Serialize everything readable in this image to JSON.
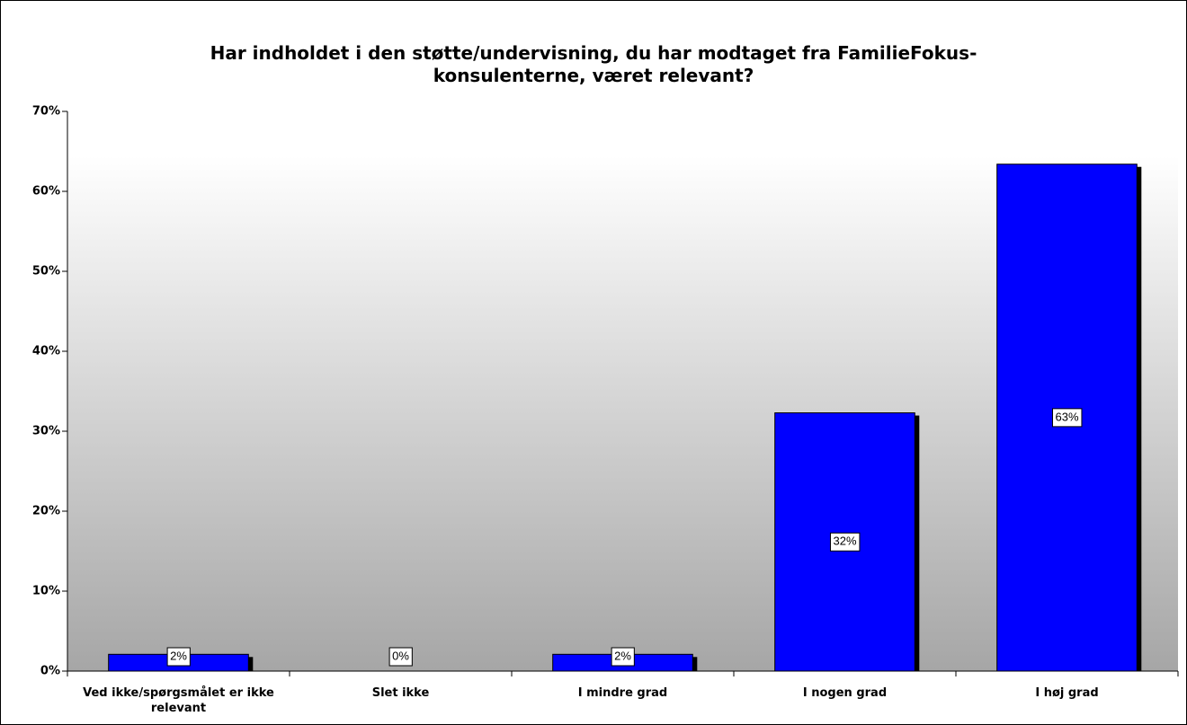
{
  "chart_data": {
    "type": "bar",
    "title": "Har indholdet i den støtte/undervisning, du har modtaget fra FamilieFokus-konsulenterne, været relevant?",
    "categories": [
      "Ved ikke/spørgsmålet er ikke relevant",
      "Slet ikke",
      "I mindre grad",
      "I nogen grad",
      "I høj grad"
    ],
    "values": [
      2.1,
      0,
      2.1,
      32.3,
      63.4
    ],
    "value_labels": [
      "2%",
      "0%",
      "2%",
      "32%",
      "63%"
    ],
    "color": "#0000ff",
    "ylim": [
      0,
      70
    ],
    "yticks": [
      {
        "value": 0,
        "label": "0%"
      },
      {
        "value": 10,
        "label": "10%"
      },
      {
        "value": 20,
        "label": "20%"
      },
      {
        "value": 30,
        "label": "30%"
      },
      {
        "value": 40,
        "label": "40%"
      },
      {
        "value": 50,
        "label": "50%"
      },
      {
        "value": 60,
        "label": "60%"
      },
      {
        "value": 70,
        "label": "70%"
      }
    ],
    "grid": false
  }
}
